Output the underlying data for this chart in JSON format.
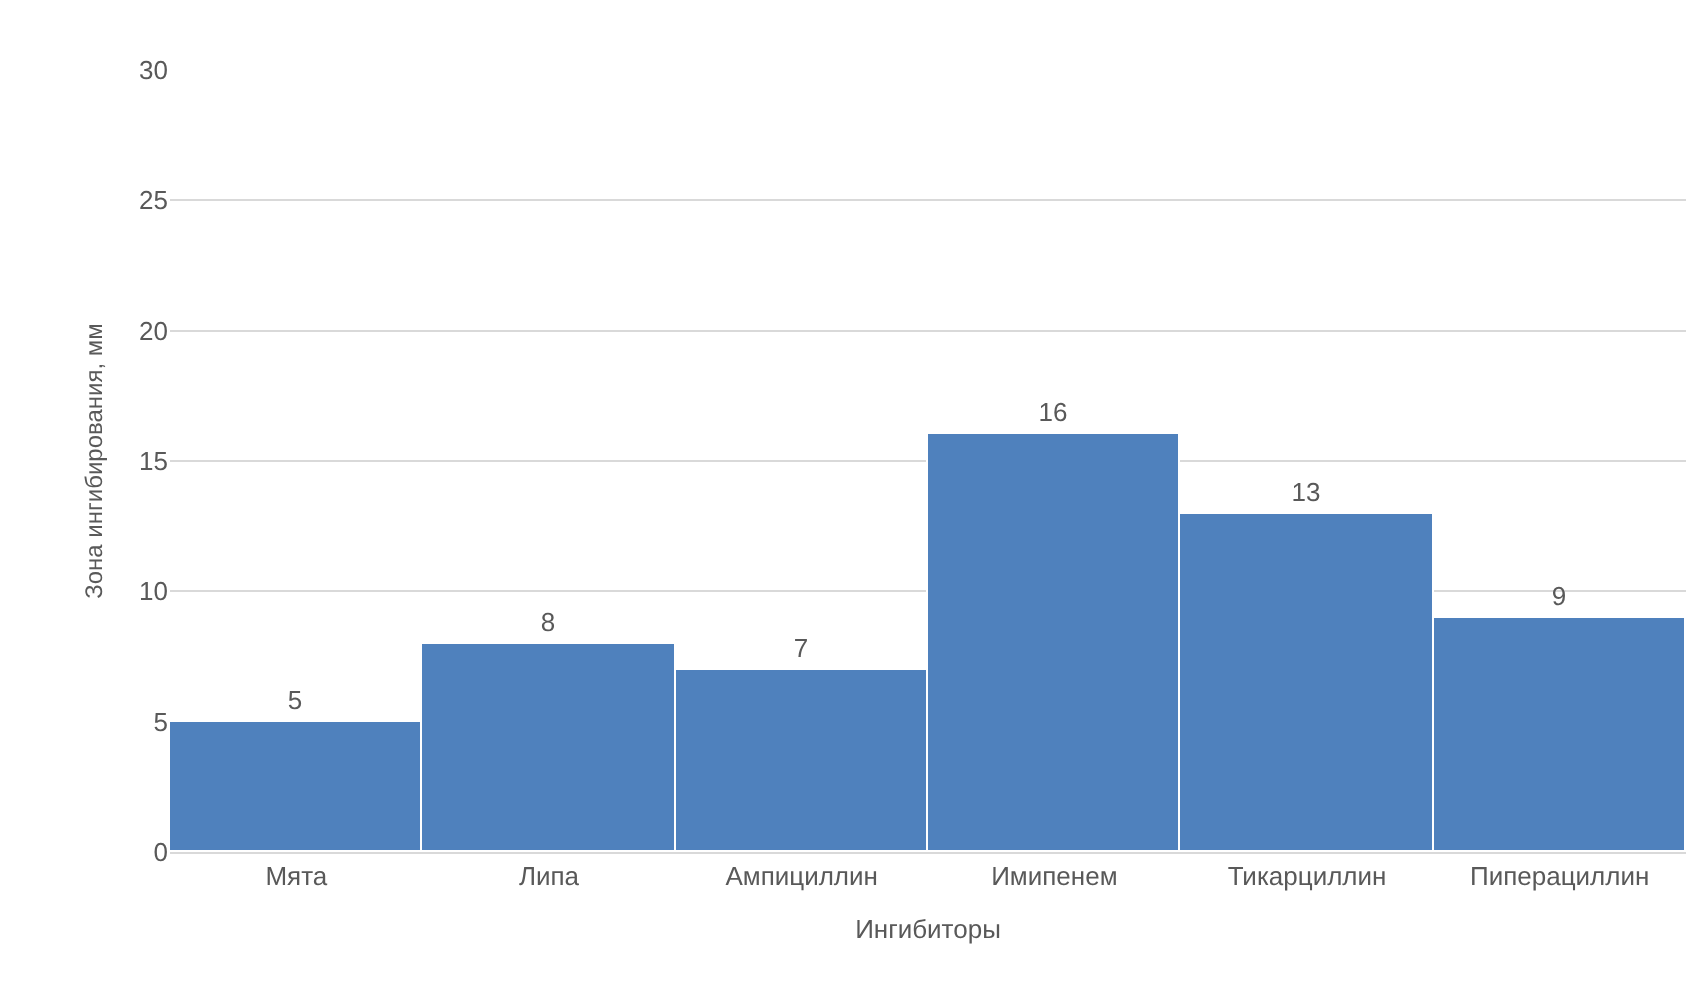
{
  "chart_data": {
    "type": "bar",
    "xlabel": "Ингибиторы",
    "ylabel": "Зона ингибирования, мм",
    "categories": [
      "Мята",
      "Липа",
      "Ампициллин",
      "Имипенем",
      "Тикарциллин",
      "Пиперациллин"
    ],
    "values": [
      5,
      8,
      7,
      16,
      13,
      9
    ],
    "color": "#4f81bd",
    "ylim": [
      0,
      30
    ],
    "yticks": [
      0,
      5,
      10,
      15,
      20,
      25,
      30
    ],
    "grid": "y",
    "data_labels": true
  }
}
